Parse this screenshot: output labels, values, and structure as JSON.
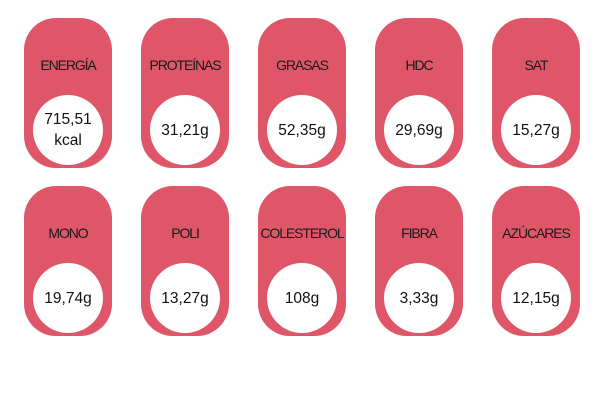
{
  "colors": {
    "pill": "#de5668",
    "circle": "#ffffff",
    "text": "#1a1a1a",
    "background": "#ffffff"
  },
  "nutrients": [
    {
      "label": "ENERGÍA",
      "value": "715,51 kcal"
    },
    {
      "label": "PROTEÍNAS",
      "value": "31,21g"
    },
    {
      "label": "GRASAS",
      "value": "52,35g"
    },
    {
      "label": "HDC",
      "value": "29,69g"
    },
    {
      "label": "SAT",
      "value": "15,27g"
    },
    {
      "label": "MONO",
      "value": "19,74g"
    },
    {
      "label": "POLI",
      "value": "13,27g"
    },
    {
      "label": "COLESTEROL",
      "value": "108g"
    },
    {
      "label": "FIBRA",
      "value": "3,33g"
    },
    {
      "label": "AZÚCARES",
      "value": "12,15g"
    }
  ]
}
